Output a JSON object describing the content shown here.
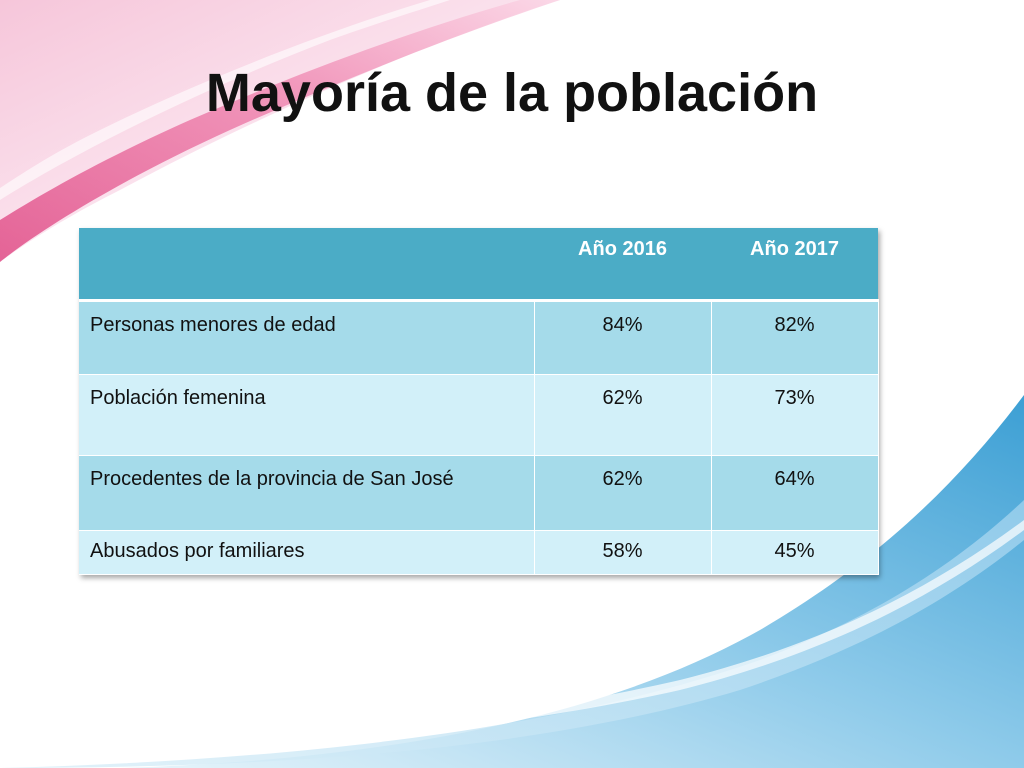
{
  "slide": {
    "title": "Mayoría de la población",
    "colors": {
      "header_bg": "#4bacc6",
      "row_dark": "#a5dbea",
      "row_light": "#d2f0f9",
      "accent_pink": "#e8528c",
      "accent_blue": "#4aa8d8"
    }
  },
  "table": {
    "headers": [
      "",
      "Año 2016",
      "Año 2017"
    ],
    "rows": [
      {
        "label": "Personas menores de edad",
        "y2016": "84%",
        "y2017": "82%"
      },
      {
        "label": "Población femenina",
        "y2016": "62%",
        "y2017": "73%"
      },
      {
        "label": "Procedentes de la provincia de  San José",
        "y2016": "62%",
        "y2017": "64%"
      },
      {
        "label": "Abusados por familiares",
        "y2016": "58%",
        "y2017": "45%"
      }
    ]
  }
}
